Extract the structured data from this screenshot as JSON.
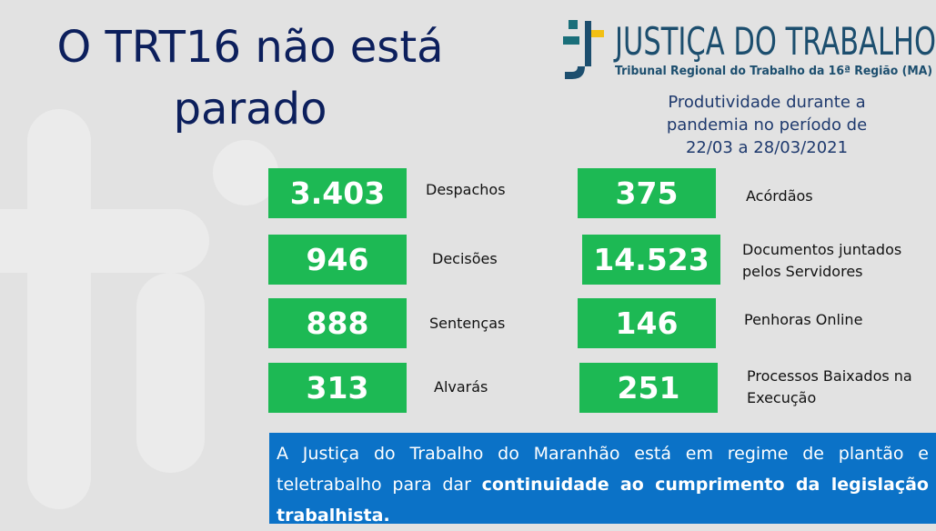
{
  "title": "O TRT16 não está parado",
  "logo": {
    "name": "JUSTIÇA DO TRABALHO",
    "subtitle": "Tribunal Regional do Trabalho da 16ª Região (MA)"
  },
  "period": "Produtividade durante a pandemia no período de 22/03 a 28/03/2021",
  "stats": [
    {
      "value": "3.403",
      "label": "Despachos"
    },
    {
      "value": "946",
      "label": "Decisões"
    },
    {
      "value": "888",
      "label": "Sentenças"
    },
    {
      "value": "313",
      "label": "Alvarás"
    },
    {
      "value": "375",
      "label": "Acórdãos"
    },
    {
      "value": "14.523",
      "label": "Documentos juntados pelos Servidores"
    },
    {
      "value": "146",
      "label": "Penhoras Online"
    },
    {
      "value": "251",
      "label": "Processos Baixados na Execução"
    }
  ],
  "footer": {
    "text": "A Justiça do Trabalho do Maranhão está em regime de plantão e teletrabalho para dar",
    "bold": "continuidade ao cumprimento da legislação trabalhista."
  }
}
